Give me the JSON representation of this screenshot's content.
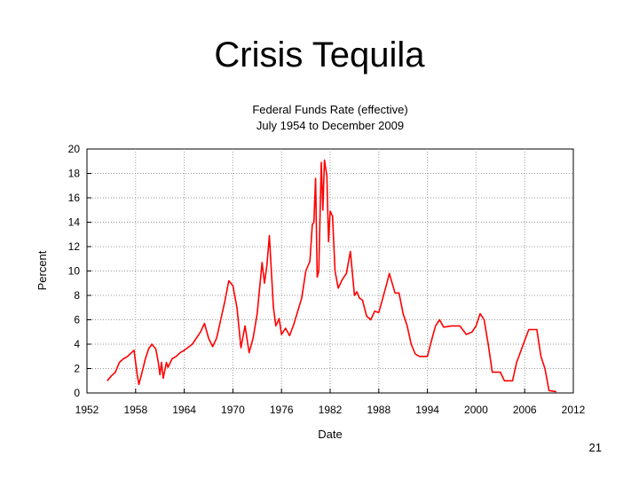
{
  "slide": {
    "title": "Crisis Tequila",
    "page_number": "21"
  },
  "chart_data": {
    "type": "line",
    "title": "Federal Funds Rate (effective)",
    "subtitle": "July 1954 to December 2009",
    "xlabel": "Date",
    "ylabel": "Percent",
    "xlim": [
      1952,
      2012
    ],
    "ylim": [
      0,
      20
    ],
    "x_ticks": [
      1952,
      1958,
      1964,
      1970,
      1976,
      1982,
      1988,
      1994,
      2000,
      2006,
      2012
    ],
    "y_ticks": [
      0,
      2,
      4,
      6,
      8,
      10,
      12,
      14,
      16,
      18,
      20
    ],
    "grid": true,
    "series_color": "#ff0000",
    "series": [
      {
        "name": "",
        "points": [
          [
            1954.5,
            1.0
          ],
          [
            1955.0,
            1.4
          ],
          [
            1955.5,
            1.7
          ],
          [
            1956.0,
            2.5
          ],
          [
            1956.5,
            2.8
          ],
          [
            1957.0,
            3.0
          ],
          [
            1957.8,
            3.5
          ],
          [
            1958.2,
            1.5
          ],
          [
            1958.4,
            0.7
          ],
          [
            1958.8,
            1.7
          ],
          [
            1959.2,
            2.8
          ],
          [
            1959.6,
            3.6
          ],
          [
            1960.0,
            4.0
          ],
          [
            1960.5,
            3.6
          ],
          [
            1960.8,
            2.5
          ],
          [
            1961.0,
            1.5
          ],
          [
            1961.2,
            2.5
          ],
          [
            1961.4,
            1.2
          ],
          [
            1961.8,
            2.5
          ],
          [
            1962.0,
            2.1
          ],
          [
            1962.5,
            2.8
          ],
          [
            1963.0,
            3.0
          ],
          [
            1963.5,
            3.3
          ],
          [
            1964.0,
            3.5
          ],
          [
            1965.0,
            4.0
          ],
          [
            1966.0,
            5.0
          ],
          [
            1966.5,
            5.7
          ],
          [
            1967.0,
            4.5
          ],
          [
            1967.5,
            3.8
          ],
          [
            1968.0,
            4.5
          ],
          [
            1968.5,
            6.0
          ],
          [
            1969.0,
            7.5
          ],
          [
            1969.5,
            9.2
          ],
          [
            1970.0,
            8.8
          ],
          [
            1970.5,
            7.0
          ],
          [
            1971.0,
            3.7
          ],
          [
            1971.5,
            5.5
          ],
          [
            1972.0,
            3.3
          ],
          [
            1972.5,
            4.5
          ],
          [
            1973.0,
            6.5
          ],
          [
            1973.6,
            10.7
          ],
          [
            1973.9,
            9.0
          ],
          [
            1974.2,
            10.5
          ],
          [
            1974.5,
            12.9
          ],
          [
            1975.0,
            7.0
          ],
          [
            1975.3,
            5.5
          ],
          [
            1975.7,
            6.1
          ],
          [
            1976.0,
            4.8
          ],
          [
            1976.5,
            5.3
          ],
          [
            1977.0,
            4.7
          ],
          [
            1977.5,
            5.6
          ],
          [
            1978.0,
            6.7
          ],
          [
            1978.5,
            7.8
          ],
          [
            1979.0,
            10.0
          ],
          [
            1979.5,
            10.8
          ],
          [
            1979.8,
            13.8
          ],
          [
            1980.0,
            14.0
          ],
          [
            1980.2,
            17.6
          ],
          [
            1980.4,
            9.5
          ],
          [
            1980.6,
            10.0
          ],
          [
            1980.9,
            18.9
          ],
          [
            1981.1,
            15.0
          ],
          [
            1981.3,
            19.1
          ],
          [
            1981.6,
            17.8
          ],
          [
            1981.8,
            12.4
          ],
          [
            1982.0,
            14.9
          ],
          [
            1982.3,
            14.5
          ],
          [
            1982.6,
            10.0
          ],
          [
            1983.0,
            8.6
          ],
          [
            1983.5,
            9.3
          ],
          [
            1984.0,
            9.8
          ],
          [
            1984.5,
            11.6
          ],
          [
            1985.0,
            8.0
          ],
          [
            1985.3,
            8.3
          ],
          [
            1985.6,
            7.8
          ],
          [
            1986.0,
            7.6
          ],
          [
            1986.5,
            6.3
          ],
          [
            1987.0,
            6.0
          ],
          [
            1987.5,
            6.7
          ],
          [
            1988.0,
            6.6
          ],
          [
            1988.5,
            7.8
          ],
          [
            1989.0,
            9.0
          ],
          [
            1989.3,
            9.8
          ],
          [
            1990.0,
            8.2
          ],
          [
            1990.5,
            8.2
          ],
          [
            1991.0,
            6.5
          ],
          [
            1991.5,
            5.5
          ],
          [
            1992.0,
            4.0
          ],
          [
            1992.5,
            3.2
          ],
          [
            1993.0,
            3.0
          ],
          [
            1994.0,
            3.0
          ],
          [
            1994.5,
            4.3
          ],
          [
            1995.0,
            5.5
          ],
          [
            1995.5,
            6.0
          ],
          [
            1996.0,
            5.4
          ],
          [
            1997.0,
            5.5
          ],
          [
            1998.0,
            5.5
          ],
          [
            1998.8,
            4.8
          ],
          [
            1999.5,
            5.0
          ],
          [
            2000.0,
            5.5
          ],
          [
            2000.5,
            6.5
          ],
          [
            2001.0,
            6.0
          ],
          [
            2001.5,
            4.0
          ],
          [
            2002.0,
            1.7
          ],
          [
            2003.0,
            1.7
          ],
          [
            2003.5,
            1.0
          ],
          [
            2004.5,
            1.0
          ],
          [
            2005.0,
            2.5
          ],
          [
            2006.0,
            4.3
          ],
          [
            2006.5,
            5.2
          ],
          [
            2007.0,
            5.2
          ],
          [
            2007.5,
            5.2
          ],
          [
            2008.0,
            3.0
          ],
          [
            2008.5,
            2.0
          ],
          [
            2009.0,
            0.2
          ],
          [
            2009.9,
            0.1
          ]
        ]
      }
    ]
  }
}
